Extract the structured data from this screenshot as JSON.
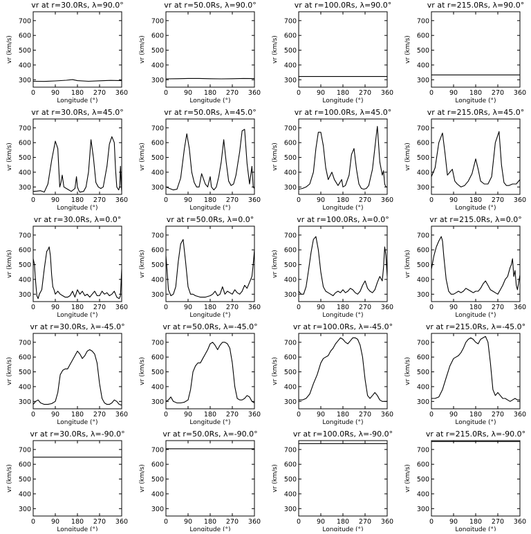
{
  "figure": {
    "xlabel": "Longitude (°)",
    "ylabel": "vr (km/s)",
    "xlim": [
      0,
      360
    ],
    "ylim": [
      250,
      760
    ],
    "xticks": [
      "0",
      "90",
      "180",
      "270",
      "360"
    ],
    "yticks": [
      "300",
      "400",
      "500",
      "600",
      "700"
    ]
  },
  "chart_data": [
    {
      "type": "line",
      "title": "vr at r=30.0Rs, λ=90.0°",
      "xlabel": "Longitude (°)",
      "ylabel": "vr (km/s)",
      "xlim": [
        0,
        360
      ],
      "ylim": [
        250,
        760
      ],
      "x": [
        0,
        45,
        90,
        135,
        160,
        180,
        225,
        270,
        315,
        360
      ],
      "y": [
        290,
        289,
        292,
        297,
        301,
        294,
        290,
        293,
        296,
        294
      ]
    },
    {
      "type": "line",
      "title": "vr at r=50.0Rs, λ=90.0°",
      "xlabel": "Longitude (°)",
      "ylabel": "vr (km/s)",
      "xlim": [
        0,
        360
      ],
      "ylim": [
        250,
        760
      ],
      "x": [
        0,
        45,
        90,
        135,
        180,
        225,
        270,
        315,
        360
      ],
      "y": [
        306,
        307,
        309,
        309,
        307,
        306,
        307,
        309,
        308
      ]
    },
    {
      "type": "line",
      "title": "vr at r=100.0Rs, λ=90.0°",
      "xlabel": "Longitude (°)",
      "ylabel": "vr (km/s)",
      "xlim": [
        0,
        360
      ],
      "ylim": [
        250,
        760
      ],
      "x": [
        0,
        360
      ],
      "y": [
        322,
        322
      ]
    },
    {
      "type": "line",
      "title": "vr at r=215.0Rs, λ=90.0°",
      "xlabel": "Longitude (°)",
      "ylabel": "vr (km/s)",
      "xlim": [
        0,
        360
      ],
      "ylim": [
        250,
        760
      ],
      "x": [
        0,
        360
      ],
      "y": [
        333,
        333
      ]
    },
    {
      "type": "line",
      "title": "vr at r=30.0Rs, λ=45.0°",
      "xlabel": "Longitude (°)",
      "ylabel": "vr (km/s)",
      "xlim": [
        0,
        360
      ],
      "ylim": [
        250,
        760
      ],
      "x": [
        0,
        15,
        30,
        45,
        60,
        75,
        90,
        100,
        108,
        113,
        118,
        125,
        135,
        145,
        155,
        170,
        176,
        180,
        186,
        190,
        205,
        215,
        225,
        235,
        245,
        255,
        265,
        275,
        285,
        300,
        310,
        320,
        330,
        335,
        340,
        348,
        352,
        355,
        358,
        360
      ],
      "y": [
        270,
        272,
        275,
        265,
        320,
        480,
        610,
        560,
        300,
        330,
        380,
        300,
        290,
        280,
        270,
        290,
        370,
        300,
        275,
        265,
        270,
        300,
        400,
        620,
        500,
        330,
        300,
        290,
        300,
        440,
        590,
        640,
        600,
        420,
        300,
        280,
        300,
        440,
        320,
        270
      ]
    },
    {
      "type": "line",
      "title": "vr at r=50.0Rs, λ=45.0°",
      "xlabel": "Longitude (°)",
      "ylabel": "vr (km/s)",
      "xlim": [
        0,
        360
      ],
      "ylim": [
        250,
        760
      ],
      "x": [
        0,
        15,
        30,
        45,
        60,
        75,
        85,
        95,
        105,
        115,
        125,
        135,
        145,
        160,
        170,
        180,
        185,
        195,
        205,
        215,
        225,
        235,
        245,
        255,
        265,
        275,
        285,
        300,
        310,
        320,
        330,
        340,
        350,
        355,
        360
      ],
      "y": [
        300,
        290,
        280,
        285,
        360,
        560,
        660,
        560,
        400,
        330,
        300,
        300,
        390,
        320,
        300,
        370,
        300,
        280,
        300,
        370,
        470,
        620,
        470,
        340,
        310,
        320,
        380,
        540,
        680,
        690,
        460,
        320,
        440,
        300,
        290
      ]
    },
    {
      "type": "line",
      "title": "vr at r=100.0Rs, λ=45.0°",
      "xlabel": "Longitude (°)",
      "ylabel": "vr (km/s)",
      "xlim": [
        0,
        360
      ],
      "ylim": [
        250,
        760
      ],
      "x": [
        0,
        15,
        30,
        45,
        60,
        70,
        80,
        90,
        100,
        110,
        120,
        135,
        145,
        160,
        175,
        180,
        190,
        205,
        215,
        225,
        235,
        245,
        255,
        265,
        275,
        285,
        300,
        315,
        320,
        330,
        340,
        345,
        350,
        355,
        360
      ],
      "y": [
        285,
        290,
        300,
        320,
        400,
        560,
        670,
        670,
        580,
        430,
        350,
        400,
        350,
        310,
        350,
        300,
        310,
        380,
        520,
        560,
        420,
        320,
        290,
        285,
        290,
        310,
        420,
        640,
        710,
        470,
        380,
        410,
        320,
        300,
        300
      ]
    },
    {
      "type": "line",
      "title": "vr at r=215.0Rs, λ=45.0°",
      "xlabel": "Longitude (°)",
      "ylabel": "vr (km/s)",
      "xlim": [
        0,
        360
      ],
      "ylim": [
        250,
        760
      ],
      "x": [
        0,
        15,
        30,
        45,
        55,
        65,
        75,
        85,
        95,
        105,
        120,
        135,
        150,
        165,
        180,
        190,
        200,
        215,
        230,
        245,
        260,
        275,
        285,
        295,
        305,
        315,
        330,
        345,
        360
      ],
      "y": [
        370,
        430,
        600,
        665,
        530,
        380,
        400,
        420,
        340,
        320,
        300,
        310,
        340,
        390,
        490,
        420,
        340,
        320,
        320,
        370,
        600,
        675,
        450,
        330,
        310,
        310,
        320,
        320,
        350
      ]
    },
    {
      "type": "line",
      "title": "vr at r=30.0Rs, λ=0.0°",
      "xlabel": "Longitude (°)",
      "ylabel": "vr (km/s)",
      "xlim": [
        0,
        360
      ],
      "ylim": [
        250,
        760
      ],
      "x": [
        0,
        5,
        10,
        15,
        20,
        25,
        35,
        45,
        55,
        60,
        65,
        70,
        75,
        80,
        85,
        90,
        100,
        110,
        120,
        130,
        140,
        150,
        160,
        170,
        180,
        190,
        200,
        210,
        220,
        230,
        240,
        250,
        260,
        270,
        280,
        290,
        300,
        310,
        320,
        330,
        340,
        350,
        355,
        358,
        360
      ],
      "y": [
        540,
        500,
        380,
        290,
        270,
        300,
        330,
        470,
        590,
        600,
        620,
        560,
        430,
        350,
        330,
        300,
        320,
        300,
        290,
        280,
        280,
        290,
        320,
        280,
        330,
        300,
        320,
        290,
        300,
        280,
        300,
        320,
        290,
        290,
        320,
        300,
        310,
        290,
        300,
        320,
        280,
        270,
        290,
        400,
        470
      ]
    },
    {
      "type": "line",
      "title": "vr at r=50.0Rs, λ=0.0°",
      "xlabel": "Longitude (°)",
      "ylabel": "vr (km/s)",
      "xlim": [
        0,
        360
      ],
      "ylim": [
        250,
        760
      ],
      "x": [
        0,
        5,
        10,
        20,
        30,
        40,
        50,
        60,
        70,
        80,
        90,
        100,
        110,
        120,
        140,
        160,
        180,
        190,
        200,
        210,
        220,
        230,
        240,
        250,
        260,
        270,
        280,
        290,
        300,
        310,
        320,
        330,
        340,
        350,
        355,
        360
      ],
      "y": [
        560,
        450,
        330,
        290,
        300,
        350,
        520,
        640,
        670,
        520,
        350,
        300,
        300,
        290,
        280,
        280,
        290,
        300,
        320,
        290,
        300,
        350,
        300,
        320,
        310,
        300,
        330,
        310,
        300,
        320,
        360,
        340,
        380,
        420,
        500,
        600
      ]
    },
    {
      "type": "line",
      "title": "vr at r=100.0Rs, λ=0.0°",
      "xlabel": "Longitude (°)",
      "ylabel": "vr (km/s)",
      "xlim": [
        0,
        360
      ],
      "ylim": [
        250,
        760
      ],
      "x": [
        0,
        10,
        20,
        30,
        40,
        50,
        60,
        70,
        80,
        90,
        100,
        110,
        120,
        130,
        140,
        150,
        160,
        170,
        180,
        190,
        200,
        210,
        220,
        230,
        240,
        250,
        260,
        270,
        280,
        290,
        300,
        310,
        320,
        330,
        340,
        345,
        350,
        355,
        360
      ],
      "y": [
        320,
        300,
        300,
        350,
        460,
        580,
        670,
        690,
        600,
        450,
        350,
        320,
        310,
        300,
        290,
        310,
        320,
        310,
        330,
        310,
        320,
        340,
        330,
        310,
        300,
        320,
        360,
        390,
        340,
        320,
        310,
        330,
        380,
        420,
        390,
        480,
        620,
        560,
        420
      ]
    },
    {
      "type": "line",
      "title": "vr at r=215.0Rs, λ=0.0°",
      "xlabel": "Longitude (°)",
      "ylabel": "vr (km/s)",
      "xlim": [
        0,
        360
      ],
      "ylim": [
        250,
        760
      ],
      "x": [
        0,
        10,
        20,
        30,
        40,
        45,
        50,
        60,
        70,
        80,
        90,
        100,
        110,
        120,
        130,
        140,
        150,
        160,
        170,
        180,
        190,
        200,
        210,
        220,
        230,
        240,
        250,
        260,
        270,
        280,
        290,
        300,
        310,
        320,
        325,
        330,
        335,
        340,
        345,
        350,
        355,
        360
      ],
      "y": [
        470,
        560,
        620,
        660,
        690,
        660,
        560,
        400,
        320,
        300,
        300,
        310,
        320,
        310,
        320,
        340,
        330,
        320,
        310,
        320,
        320,
        340,
        370,
        390,
        360,
        330,
        320,
        310,
        300,
        330,
        360,
        400,
        420,
        480,
        500,
        540,
        420,
        460,
        360,
        330,
        380,
        430
      ]
    },
    {
      "type": "line",
      "title": "vr at r=30.0Rs, λ=-45.0°",
      "xlabel": "Longitude (°)",
      "ylabel": "vr (km/s)",
      "xlim": [
        0,
        360
      ],
      "ylim": [
        250,
        760
      ],
      "x": [
        0,
        10,
        20,
        30,
        45,
        60,
        75,
        90,
        100,
        110,
        120,
        130,
        140,
        150,
        160,
        170,
        180,
        190,
        200,
        210,
        220,
        230,
        240,
        250,
        260,
        270,
        280,
        290,
        300,
        310,
        320,
        330,
        340,
        350,
        360
      ],
      "y": [
        280,
        300,
        310,
        290,
        280,
        280,
        285,
        300,
        360,
        480,
        510,
        520,
        520,
        550,
        580,
        610,
        640,
        620,
        590,
        610,
        640,
        650,
        640,
        620,
        560,
        420,
        320,
        290,
        280,
        280,
        290,
        310,
        300,
        280,
        275
      ]
    },
    {
      "type": "line",
      "title": "vr at r=50.0Rs, λ=-45.0°",
      "xlabel": "Longitude (°)",
      "ylabel": "vr (km/s)",
      "xlim": [
        0,
        360
      ],
      "ylim": [
        250,
        760
      ],
      "x": [
        0,
        10,
        20,
        30,
        45,
        60,
        75,
        90,
        100,
        110,
        120,
        130,
        140,
        150,
        160,
        170,
        180,
        190,
        200,
        210,
        220,
        230,
        240,
        250,
        260,
        270,
        280,
        290,
        300,
        310,
        320,
        330,
        340,
        350,
        360
      ],
      "y": [
        300,
        310,
        330,
        300,
        290,
        290,
        295,
        310,
        380,
        500,
        540,
        560,
        560,
        590,
        620,
        650,
        690,
        700,
        680,
        650,
        680,
        700,
        700,
        690,
        660,
        560,
        400,
        320,
        310,
        310,
        320,
        340,
        330,
        300,
        290
      ]
    },
    {
      "type": "line",
      "title": "vr at r=100.0Rs, λ=-45.0°",
      "xlabel": "Longitude (°)",
      "ylabel": "vr (km/s)",
      "xlim": [
        0,
        360
      ],
      "ylim": [
        250,
        760
      ],
      "x": [
        0,
        15,
        30,
        45,
        60,
        75,
        90,
        100,
        110,
        120,
        130,
        140,
        150,
        160,
        170,
        180,
        190,
        200,
        210,
        220,
        230,
        240,
        250,
        260,
        270,
        280,
        290,
        300,
        310,
        320,
        330,
        340,
        350,
        360
      ],
      "y": [
        310,
        310,
        320,
        350,
        420,
        480,
        560,
        590,
        600,
        610,
        640,
        660,
        690,
        710,
        730,
        720,
        700,
        690,
        710,
        730,
        730,
        720,
        680,
        600,
        450,
        340,
        320,
        340,
        360,
        340,
        310,
        300,
        300,
        300
      ]
    },
    {
      "type": "line",
      "title": "vr at r=215.0Rs, λ=-45.0°",
      "xlabel": "Longitude (°)",
      "ylabel": "vr (km/s)",
      "xlim": [
        0,
        360
      ],
      "ylim": [
        250,
        760
      ],
      "x": [
        0,
        15,
        30,
        45,
        60,
        75,
        90,
        100,
        110,
        120,
        130,
        140,
        150,
        160,
        170,
        180,
        190,
        200,
        210,
        220,
        230,
        240,
        250,
        260,
        270,
        280,
        290,
        300,
        310,
        320,
        330,
        340,
        350,
        360
      ],
      "y": [
        320,
        320,
        330,
        380,
        460,
        540,
        590,
        600,
        610,
        630,
        660,
        700,
        720,
        730,
        720,
        700,
        690,
        720,
        730,
        740,
        700,
        560,
        380,
        340,
        360,
        340,
        320,
        320,
        310,
        300,
        310,
        320,
        310,
        310
      ]
    },
    {
      "type": "line",
      "title": "vr at r=30.0Rs, λ=-90.0°",
      "xlabel": "Longitude (°)",
      "ylabel": "vr (km/s)",
      "xlim": [
        0,
        360
      ],
      "ylim": [
        250,
        760
      ],
      "x": [
        0,
        360
      ],
      "y": [
        648,
        648
      ]
    },
    {
      "type": "line",
      "title": "vr at r=50.0Rs, λ=-90.0°",
      "xlabel": "Longitude (°)",
      "ylabel": "vr (km/s)",
      "xlim": [
        0,
        360
      ],
      "ylim": [
        250,
        760
      ],
      "x": [
        0,
        360
      ],
      "y": [
        705,
        705
      ]
    },
    {
      "type": "line",
      "title": "vr at r=100.0Rs, λ=-90.0°",
      "xlabel": "Longitude (°)",
      "ylabel": "vr (km/s)",
      "xlim": [
        0,
        360
      ],
      "ylim": [
        250,
        760
      ],
      "x": [
        0,
        360
      ],
      "y": [
        740,
        740
      ]
    },
    {
      "type": "line",
      "title": "vr at r=215.0Rs, λ=-90.0°",
      "xlabel": "Longitude (°)",
      "ylabel": "vr (km/s)",
      "xlim": [
        0,
        360
      ],
      "ylim": [
        250,
        760
      ],
      "x": [
        0,
        360
      ],
      "y": [
        754,
        754
      ]
    }
  ]
}
